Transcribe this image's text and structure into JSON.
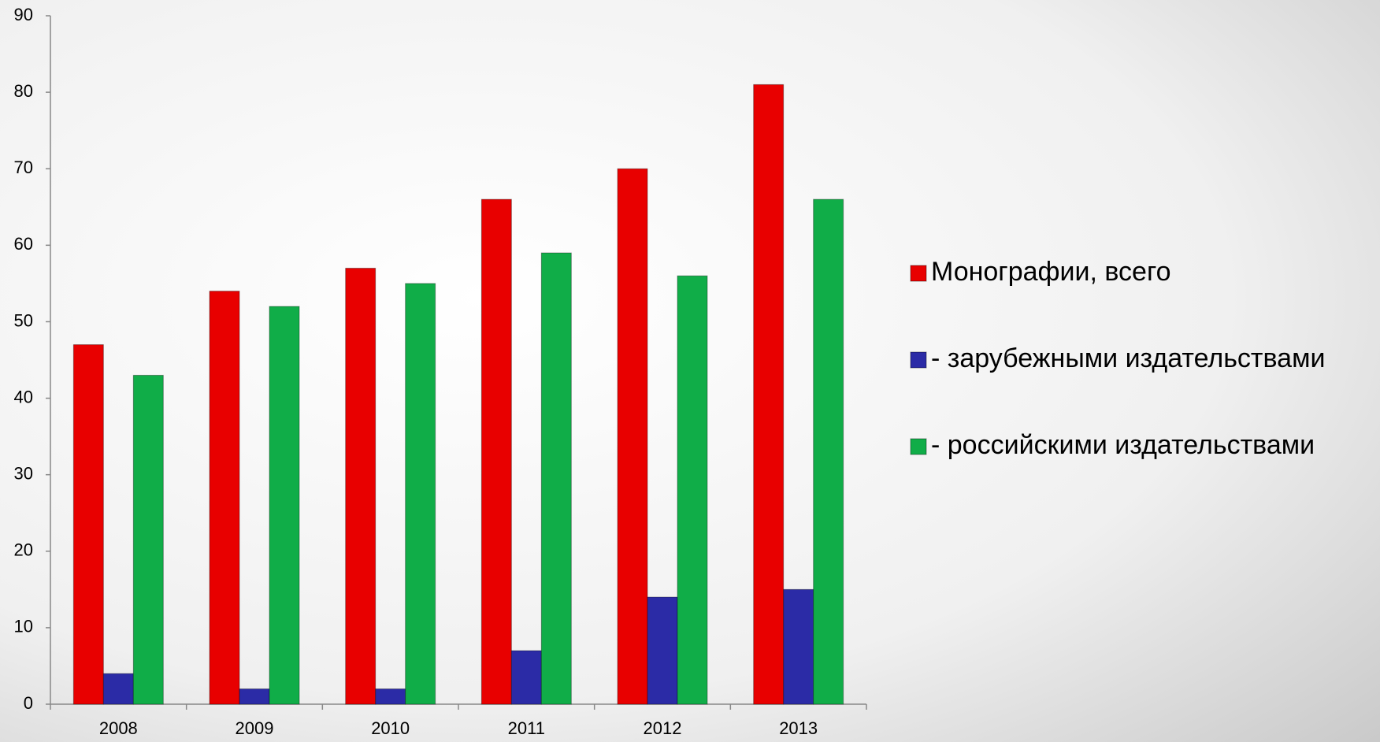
{
  "chart_data": {
    "type": "bar",
    "categories": [
      "2008",
      "2009",
      "2010",
      "2011",
      "2012",
      "2013"
    ],
    "series": [
      {
        "name": "Монографии, всего",
        "color": "#e80000",
        "values": [
          47,
          54,
          57,
          66,
          70,
          81
        ]
      },
      {
        "name": "- зарубежными издательствами",
        "color": "#2b2ba6",
        "values": [
          4,
          2,
          2,
          7,
          14,
          15
        ]
      },
      {
        "name": "- российскими издательствами",
        "color": "#10ad48",
        "values": [
          43,
          52,
          55,
          59,
          56,
          66
        ]
      }
    ],
    "ylim": [
      0,
      90
    ],
    "yticks": [
      0,
      10,
      20,
      30,
      40,
      50,
      60,
      70,
      80,
      90
    ],
    "grid": false,
    "legend": "right"
  }
}
